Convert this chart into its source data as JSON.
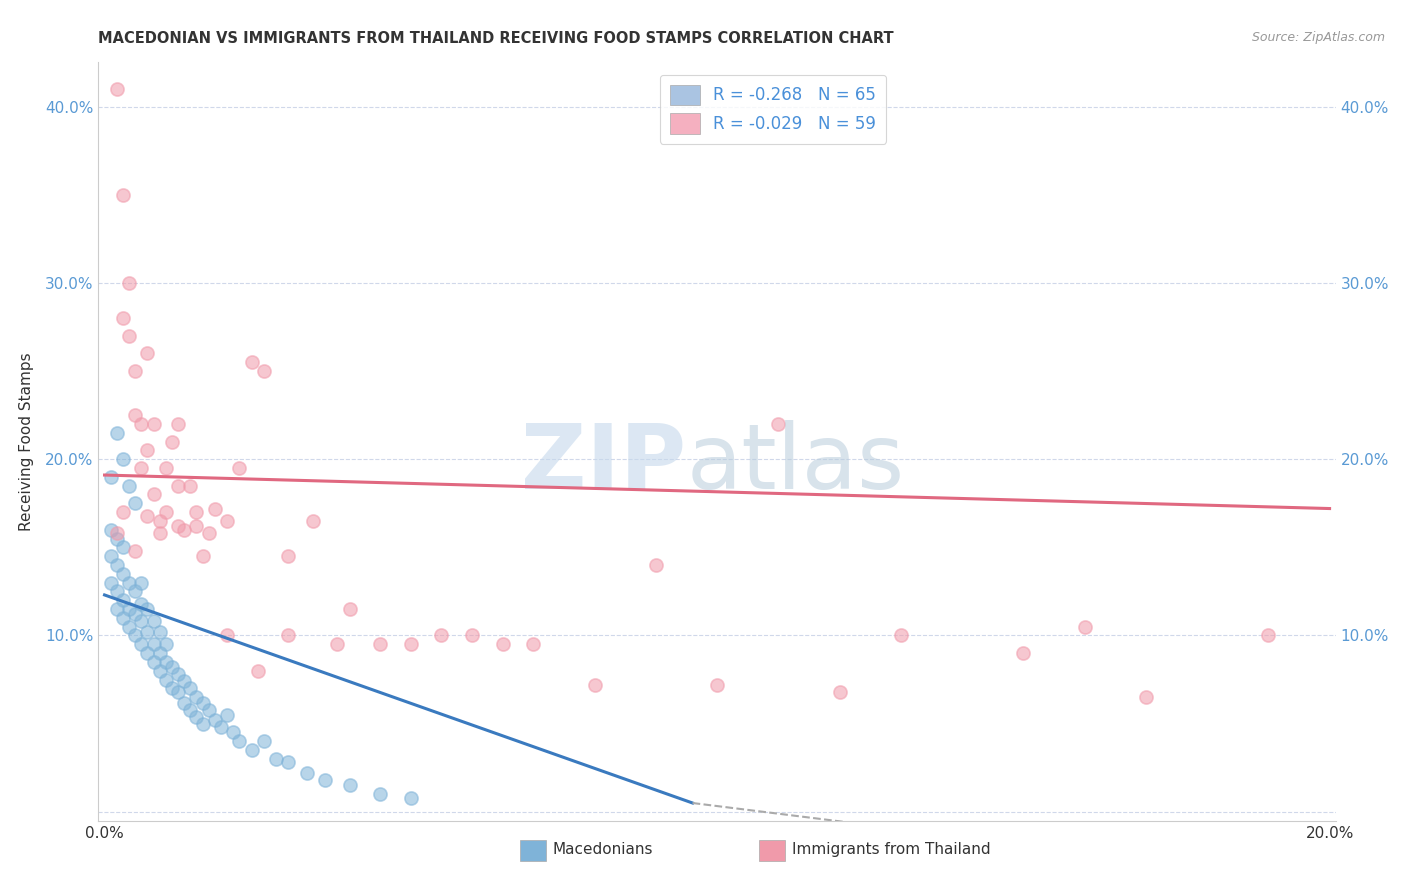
{
  "title": "MACEDONIAN VS IMMIGRANTS FROM THAILAND RECEIVING FOOD STAMPS CORRELATION CHART",
  "source": "Source: ZipAtlas.com",
  "ylabel": "Receiving Food Stamps",
  "xlim": [
    -0.001,
    0.201
  ],
  "ylim": [
    -0.005,
    0.425
  ],
  "yticks": [
    0.0,
    0.1,
    0.2,
    0.3,
    0.4
  ],
  "ytick_labels_left": [
    "",
    "10.0%",
    "20.0%",
    "30.0%",
    "40.0%"
  ],
  "ytick_labels_right": [
    "",
    "10.0%",
    "20.0%",
    "30.0%",
    "40.0%"
  ],
  "xticks": [
    0.0,
    0.05,
    0.1,
    0.15,
    0.2
  ],
  "xtick_labels": [
    "0.0%",
    "",
    "",
    "",
    "20.0%"
  ],
  "legend_entries": [
    {
      "label": "R = -0.268   N = 65",
      "color": "#aac4e2"
    },
    {
      "label": "R = -0.029   N = 59",
      "color": "#f5b0c0"
    }
  ],
  "series1_color": "#7fb3d8",
  "series2_color": "#f09aaa",
  "trendline1_color": "#3a7abf",
  "trendline2_color": "#e06880",
  "trendline1_dash_color": "#aaaaaa",
  "watermark_zip_color": "#c5d8ec",
  "watermark_atlas_color": "#b8ccdc",
  "background_color": "#ffffff",
  "grid_color": "#d0d8ea",
  "macedonian_x": [
    0.001,
    0.001,
    0.001,
    0.002,
    0.002,
    0.002,
    0.002,
    0.003,
    0.003,
    0.003,
    0.003,
    0.004,
    0.004,
    0.004,
    0.005,
    0.005,
    0.005,
    0.006,
    0.006,
    0.006,
    0.006,
    0.007,
    0.007,
    0.007,
    0.008,
    0.008,
    0.008,
    0.009,
    0.009,
    0.009,
    0.01,
    0.01,
    0.01,
    0.011,
    0.011,
    0.012,
    0.012,
    0.013,
    0.013,
    0.014,
    0.014,
    0.015,
    0.015,
    0.016,
    0.016,
    0.017,
    0.018,
    0.019,
    0.02,
    0.021,
    0.022,
    0.024,
    0.026,
    0.028,
    0.03,
    0.033,
    0.036,
    0.04,
    0.045,
    0.05,
    0.001,
    0.002,
    0.003,
    0.004,
    0.005
  ],
  "macedonian_y": [
    0.13,
    0.145,
    0.16,
    0.115,
    0.125,
    0.14,
    0.155,
    0.11,
    0.12,
    0.135,
    0.15,
    0.105,
    0.115,
    0.13,
    0.1,
    0.112,
    0.125,
    0.095,
    0.108,
    0.118,
    0.13,
    0.09,
    0.102,
    0.115,
    0.085,
    0.095,
    0.108,
    0.08,
    0.09,
    0.102,
    0.075,
    0.085,
    0.095,
    0.07,
    0.082,
    0.068,
    0.078,
    0.062,
    0.074,
    0.058,
    0.07,
    0.054,
    0.065,
    0.05,
    0.062,
    0.058,
    0.052,
    0.048,
    0.055,
    0.045,
    0.04,
    0.035,
    0.04,
    0.03,
    0.028,
    0.022,
    0.018,
    0.015,
    0.01,
    0.008,
    0.19,
    0.215,
    0.2,
    0.185,
    0.175
  ],
  "thailand_x": [
    0.002,
    0.003,
    0.003,
    0.004,
    0.004,
    0.005,
    0.005,
    0.006,
    0.006,
    0.007,
    0.007,
    0.008,
    0.008,
    0.009,
    0.01,
    0.01,
    0.011,
    0.012,
    0.012,
    0.013,
    0.014,
    0.015,
    0.016,
    0.017,
    0.018,
    0.02,
    0.022,
    0.024,
    0.026,
    0.03,
    0.034,
    0.04,
    0.05,
    0.06,
    0.07,
    0.09,
    0.11,
    0.13,
    0.15,
    0.17,
    0.19,
    0.002,
    0.003,
    0.005,
    0.007,
    0.009,
    0.012,
    0.015,
    0.02,
    0.025,
    0.03,
    0.038,
    0.045,
    0.055,
    0.065,
    0.08,
    0.1,
    0.12,
    0.16
  ],
  "thailand_y": [
    0.41,
    0.35,
    0.28,
    0.3,
    0.27,
    0.25,
    0.225,
    0.22,
    0.195,
    0.26,
    0.205,
    0.18,
    0.22,
    0.165,
    0.195,
    0.17,
    0.21,
    0.185,
    0.22,
    0.16,
    0.185,
    0.17,
    0.145,
    0.158,
    0.172,
    0.165,
    0.195,
    0.255,
    0.25,
    0.145,
    0.165,
    0.115,
    0.095,
    0.1,
    0.095,
    0.14,
    0.22,
    0.1,
    0.09,
    0.065,
    0.1,
    0.158,
    0.17,
    0.148,
    0.168,
    0.158,
    0.162,
    0.162,
    0.1,
    0.08,
    0.1,
    0.095,
    0.095,
    0.1,
    0.095,
    0.072,
    0.072,
    0.068,
    0.105
  ]
}
